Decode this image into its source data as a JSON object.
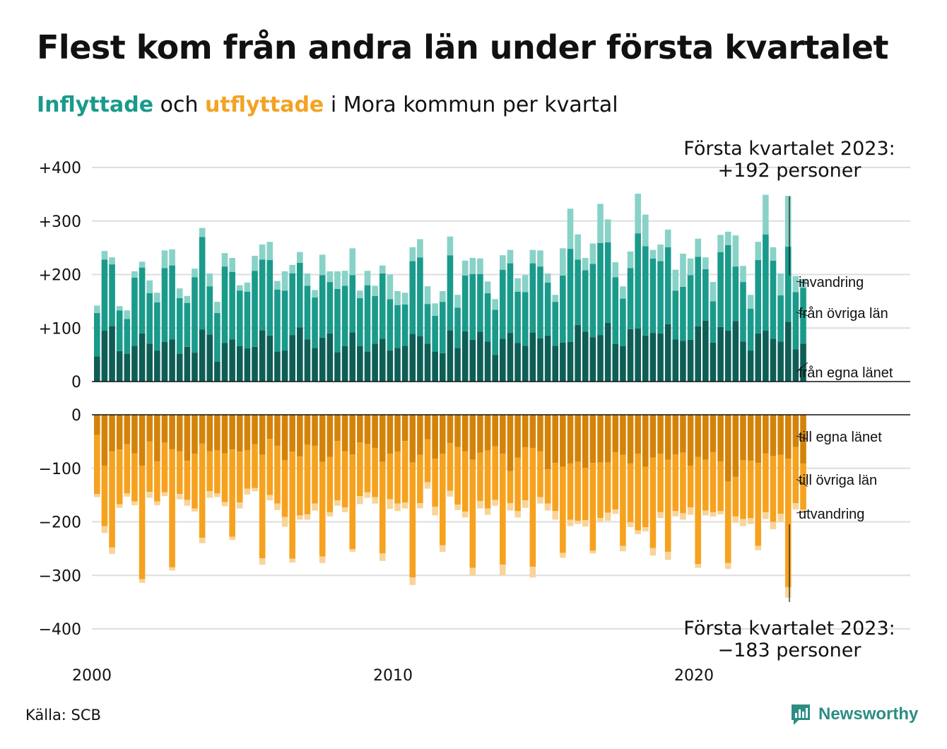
{
  "header": {
    "title": "Flest kom från andra län under första kvartalet",
    "subtitle_in": "Inflyttade",
    "subtitle_och": "och",
    "subtitle_out": "utflyttade",
    "subtitle_rest": "i Mora kommun per kvartal"
  },
  "footer": {
    "source": "Källa: SCB",
    "brand": "Newsworthy"
  },
  "colors": {
    "in_egna": "#0e5e56",
    "in_ovriga": "#1a9a8b",
    "in_invandring": "#88d2c8",
    "ut_egna": "#d4830a",
    "ut_ovriga": "#f6a21f",
    "ut_utvandring": "#f8d49a",
    "brand": "#2d8d82"
  },
  "chart_data": {
    "type": "bar",
    "stacked": true,
    "x_start": "2000 Q1",
    "x_end": "2023 Q1",
    "x_ticks": [
      "2000",
      "2010",
      "2020"
    ],
    "top_panel": {
      "ylim": [
        0,
        400
      ],
      "yticks": [
        "+400",
        "+300",
        "+200",
        "+100",
        "0"
      ],
      "annotation": [
        "Första kvartalet 2023:",
        "+192 personer"
      ],
      "series": [
        {
          "name": "från egna länet",
          "values": [
            47,
            95,
            104,
            57,
            52,
            67,
            90,
            71,
            58,
            74,
            79,
            52,
            65,
            54,
            97,
            88,
            37,
            72,
            79,
            66,
            62,
            65,
            96,
            86,
            56,
            58,
            87,
            101,
            79,
            63,
            82,
            90,
            55,
            66,
            92,
            66,
            56,
            71,
            80,
            58,
            63,
            67,
            89,
            85,
            71,
            56,
            53,
            96,
            63,
            94,
            78,
            93,
            75,
            50,
            80,
            91,
            72,
            67,
            92,
            81,
            86,
            67,
            73,
            74,
            106,
            93,
            83,
            87,
            110,
            70,
            66,
            98,
            99,
            86,
            91,
            90,
            107,
            79,
            76,
            78,
            103,
            114,
            73,
            102,
            95,
            113,
            75,
            58,
            90,
            95,
            80,
            75,
            112,
            60,
            71
          ]
        },
        {
          "name": "från övriga län",
          "values": [
            81,
            133,
            115,
            76,
            65,
            127,
            123,
            94,
            90,
            138,
            138,
            104,
            82,
            141,
            173,
            90,
            91,
            143,
            126,
            104,
            106,
            142,
            132,
            141,
            116,
            112,
            115,
            121,
            100,
            94,
            117,
            96,
            118,
            113,
            107,
            90,
            124,
            89,
            122,
            96,
            80,
            77,
            136,
            147,
            74,
            67,
            96,
            140,
            75,
            104,
            123,
            108,
            90,
            84,
            129,
            130,
            96,
            100,
            129,
            134,
            99,
            82,
            125,
            174,
            122,
            115,
            137,
            172,
            150,
            125,
            89,
            114,
            178,
            167,
            139,
            135,
            144,
            91,
            101,
            121,
            130,
            96,
            77,
            140,
            160,
            102,
            111,
            78,
            137,
            180,
            146,
            86,
            140,
            107,
            104
          ]
        },
        {
          "name": "invandring",
          "values": [
            14,
            16,
            13,
            8,
            16,
            12,
            11,
            24,
            18,
            33,
            30,
            18,
            13,
            16,
            17,
            24,
            21,
            25,
            26,
            10,
            17,
            28,
            28,
            34,
            16,
            36,
            16,
            20,
            23,
            14,
            38,
            20,
            33,
            28,
            50,
            14,
            27,
            19,
            15,
            46,
            26,
            22,
            26,
            34,
            33,
            23,
            20,
            35,
            24,
            28,
            30,
            29,
            22,
            20,
            27,
            25,
            25,
            32,
            25,
            30,
            17,
            13,
            51,
            75,
            47,
            23,
            38,
            73,
            43,
            28,
            23,
            31,
            74,
            59,
            16,
            31,
            33,
            39,
            62,
            31,
            34,
            22,
            36,
            32,
            25,
            58,
            30,
            26,
            34,
            74,
            25,
            41,
            95,
            30,
            17
          ]
        }
      ],
      "labels": [
        "invandring",
        "från övriga län",
        "från egna länet"
      ]
    },
    "bottom_panel": {
      "ylim": [
        -400,
        0
      ],
      "yticks": [
        "0",
        "−100",
        "−200",
        "−300",
        "−400"
      ],
      "annotation": [
        "Första kvartalet 2023:",
        "−183 personer"
      ],
      "series": [
        {
          "name": "till egna länet",
          "values": [
            -38,
            -95,
            -68,
            -65,
            -55,
            -72,
            -95,
            -50,
            -87,
            -52,
            -64,
            -68,
            -86,
            -73,
            -54,
            -68,
            -66,
            -72,
            -65,
            -69,
            -66,
            -55,
            -75,
            -45,
            -58,
            -85,
            -69,
            -78,
            -56,
            -58,
            -88,
            -79,
            -49,
            -68,
            -74,
            -52,
            -55,
            -62,
            -88,
            -73,
            -69,
            -49,
            -89,
            -75,
            -46,
            -82,
            -73,
            -53,
            -60,
            -68,
            -84,
            -71,
            -67,
            -59,
            -73,
            -105,
            -80,
            -61,
            -62,
            -68,
            -102,
            -90,
            -97,
            -91,
            -88,
            -99,
            -90,
            -89,
            -89,
            -70,
            -75,
            -91,
            -73,
            -97,
            -80,
            -73,
            -84,
            -74,
            -71,
            -95,
            -79,
            -84,
            -70,
            -87,
            -125,
            -116,
            -85,
            -86,
            -90,
            -72,
            -77,
            -75,
            -82,
            -60,
            -91
          ]
        },
        {
          "name": "till övriga län",
          "values": [
            -110,
            -113,
            -180,
            -102,
            -92,
            -90,
            -212,
            -94,
            -75,
            -93,
            -221,
            -80,
            -73,
            -102,
            -176,
            -75,
            -81,
            -91,
            -163,
            -95,
            -72,
            -82,
            -193,
            -105,
            -108,
            -106,
            -200,
            -110,
            -130,
            -108,
            -177,
            -103,
            -111,
            -105,
            -177,
            -100,
            -90,
            -92,
            -171,
            -85,
            -97,
            -115,
            -215,
            -90,
            -80,
            -90,
            -171,
            -89,
            -108,
            -113,
            -202,
            -90,
            -108,
            -100,
            -207,
            -60,
            -100,
            -99,
            -222,
            -86,
            -64,
            -90,
            -161,
            -105,
            -110,
            -98,
            -164,
            -104,
            -94,
            -107,
            -170,
            -110,
            -143,
            -113,
            -169,
            -109,
            -172,
            -106,
            -113,
            -78,
            -200,
            -95,
            -112,
            -93,
            -152,
            -74,
            -110,
            -107,
            -155,
            -110,
            -123,
            -110,
            -240,
            -105,
            -86
          ]
        },
        {
          "name": "utvandring",
          "values": [
            -6,
            -13,
            -12,
            -7,
            -6,
            -7,
            -7,
            -11,
            -7,
            -7,
            -6,
            -10,
            -11,
            -6,
            -10,
            -12,
            -7,
            -8,
            -6,
            -11,
            -11,
            -6,
            -12,
            -10,
            -12,
            -18,
            -7,
            -8,
            -10,
            -13,
            -12,
            -8,
            -10,
            -9,
            -5,
            -15,
            -10,
            -12,
            -14,
            -18,
            -14,
            -11,
            -14,
            -10,
            -12,
            -16,
            -12,
            -11,
            -10,
            -11,
            -15,
            -14,
            -12,
            -11,
            -20,
            -14,
            -12,
            -14,
            -20,
            -12,
            -13,
            -16,
            -9,
            -12,
            -6,
            -12,
            -5,
            -8,
            -15,
            -8,
            -10,
            -9,
            -7,
            -8,
            -14,
            -11,
            -15,
            -10,
            -12,
            -14,
            -7,
            -9,
            -8,
            -6,
            -11,
            -12,
            -13,
            -11,
            -8,
            -13,
            -14,
            -15,
            -20,
            -12,
            -6
          ]
        }
      ],
      "labels": [
        "till egna länet",
        "till övriga län",
        "utvandring"
      ]
    }
  }
}
